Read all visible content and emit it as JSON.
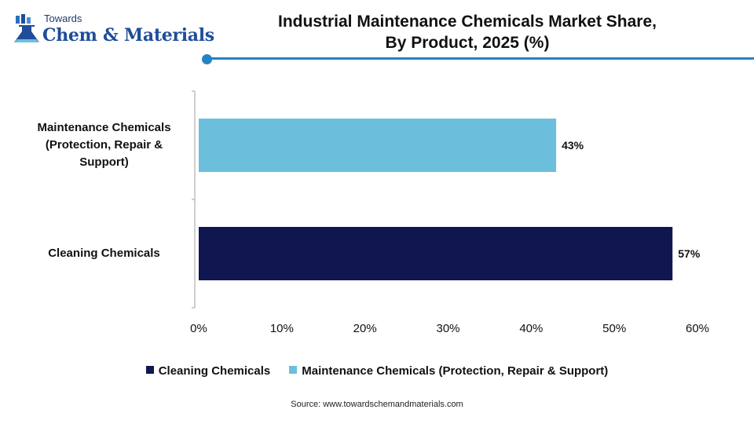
{
  "brand": {
    "line1": "Towards",
    "line2": "Chem & Materials"
  },
  "title_line1": "Industrial Maintenance Chemicals Market Share,",
  "title_line2": "By Product, 2025 (%)",
  "source": "Source: www.towardschemandmaterials.com",
  "colors": {
    "accent": "#2583c4",
    "cleaning": "#10164f",
    "maintenance": "#6bbfdc"
  },
  "chart_data": {
    "type": "bar",
    "orientation": "horizontal",
    "title": "Industrial Maintenance Chemicals Market Share, By Product, 2025 (%)",
    "categories": [
      "Maintenance Chemicals (Protection, Repair & Support)",
      "Cleaning Chemicals"
    ],
    "category_lines": [
      [
        "Maintenance Chemicals",
        "(Protection, Repair &",
        "Support)"
      ],
      [
        "Cleaning Chemicals"
      ]
    ],
    "values": [
      43,
      57
    ],
    "value_labels": [
      "43%",
      "57%"
    ],
    "bar_colors": [
      "#6bbfdc",
      "#10164f"
    ],
    "xlim": [
      0,
      60
    ],
    "xticks": [
      "0%",
      "10%",
      "20%",
      "30%",
      "40%",
      "50%",
      "60%"
    ],
    "grid": false,
    "legend_position": "bottom",
    "legend": [
      {
        "label": "Cleaning Chemicals",
        "color": "#10164f"
      },
      {
        "label": "Maintenance Chemicals (Protection, Repair & Support)",
        "color": "#6bbfdc"
      }
    ]
  }
}
